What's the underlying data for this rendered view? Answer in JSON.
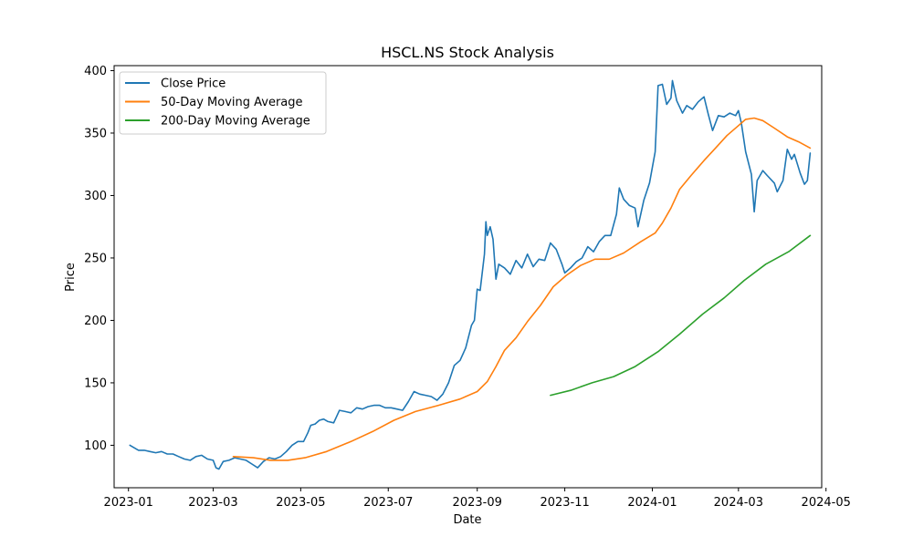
{
  "chart_data": {
    "type": "line",
    "title": "HSCL.NS Stock Analysis",
    "xlabel": "Date",
    "ylabel": "Price",
    "xlim": [
      "2022-12-22",
      "2024-04-28"
    ],
    "ylim": [
      66,
      404
    ],
    "x_ticks": [
      "2023-01-01",
      "2023-03-01",
      "2023-05-01",
      "2023-07-01",
      "2023-09-01",
      "2023-11-01",
      "2024-01-01",
      "2024-03-01",
      "2024-05-01"
    ],
    "x_tick_labels": [
      "2023-01",
      "2023-03",
      "2023-05",
      "2023-07",
      "2023-09",
      "2023-11",
      "2024-01",
      "2024-03",
      "2024-05"
    ],
    "y_ticks": [
      100,
      150,
      200,
      250,
      300,
      350,
      400
    ],
    "y_tick_labels": [
      "100",
      "150",
      "200",
      "250",
      "300",
      "350",
      "400"
    ],
    "grid": false,
    "legend_position": "top-left",
    "series": [
      {
        "name": "Close Price",
        "color": "#1f77b4",
        "points": [
          [
            "2023-01-02",
            100
          ],
          [
            "2023-01-05",
            98
          ],
          [
            "2023-01-08",
            96
          ],
          [
            "2023-01-12",
            96
          ],
          [
            "2023-01-16",
            95
          ],
          [
            "2023-01-20",
            94
          ],
          [
            "2023-01-24",
            95
          ],
          [
            "2023-01-28",
            93
          ],
          [
            "2023-02-01",
            93
          ],
          [
            "2023-02-05",
            91
          ],
          [
            "2023-02-09",
            89
          ],
          [
            "2023-02-13",
            88
          ],
          [
            "2023-02-17",
            91
          ],
          [
            "2023-02-21",
            92
          ],
          [
            "2023-02-25",
            89
          ],
          [
            "2023-03-01",
            88
          ],
          [
            "2023-03-03",
            82
          ],
          [
            "2023-03-05",
            81
          ],
          [
            "2023-03-08",
            87
          ],
          [
            "2023-03-12",
            88
          ],
          [
            "2023-03-16",
            90
          ],
          [
            "2023-03-20",
            89
          ],
          [
            "2023-03-24",
            88
          ],
          [
            "2023-03-28",
            85
          ],
          [
            "2023-04-01",
            82
          ],
          [
            "2023-04-05",
            87
          ],
          [
            "2023-04-09",
            90
          ],
          [
            "2023-04-13",
            89
          ],
          [
            "2023-04-17",
            91
          ],
          [
            "2023-04-21",
            95
          ],
          [
            "2023-04-25",
            100
          ],
          [
            "2023-04-29",
            103
          ],
          [
            "2023-05-03",
            103
          ],
          [
            "2023-05-06",
            110
          ],
          [
            "2023-05-08",
            116
          ],
          [
            "2023-05-11",
            117
          ],
          [
            "2023-05-14",
            120
          ],
          [
            "2023-05-17",
            121
          ],
          [
            "2023-05-20",
            119
          ],
          [
            "2023-05-24",
            118
          ],
          [
            "2023-05-28",
            128
          ],
          [
            "2023-06-01",
            127
          ],
          [
            "2023-06-05",
            126
          ],
          [
            "2023-06-09",
            130
          ],
          [
            "2023-06-13",
            129
          ],
          [
            "2023-06-17",
            131
          ],
          [
            "2023-06-21",
            132
          ],
          [
            "2023-06-25",
            132
          ],
          [
            "2023-06-29",
            130
          ],
          [
            "2023-07-03",
            130
          ],
          [
            "2023-07-07",
            129
          ],
          [
            "2023-07-11",
            128
          ],
          [
            "2023-07-15",
            135
          ],
          [
            "2023-07-19",
            143
          ],
          [
            "2023-07-23",
            141
          ],
          [
            "2023-07-27",
            140
          ],
          [
            "2023-07-31",
            139
          ],
          [
            "2023-08-04",
            136
          ],
          [
            "2023-08-08",
            141
          ],
          [
            "2023-08-12",
            150
          ],
          [
            "2023-08-16",
            164
          ],
          [
            "2023-08-20",
            168
          ],
          [
            "2023-08-24",
            178
          ],
          [
            "2023-08-28",
            196
          ],
          [
            "2023-08-30",
            200
          ],
          [
            "2023-09-01",
            225
          ],
          [
            "2023-09-03",
            224
          ],
          [
            "2023-09-06",
            253
          ],
          [
            "2023-09-07",
            279
          ],
          [
            "2023-09-08",
            268
          ],
          [
            "2023-09-10",
            275
          ],
          [
            "2023-09-12",
            265
          ],
          [
            "2023-09-14",
            233
          ],
          [
            "2023-09-16",
            245
          ],
          [
            "2023-09-20",
            242
          ],
          [
            "2023-09-24",
            237
          ],
          [
            "2023-09-28",
            248
          ],
          [
            "2023-10-02",
            242
          ],
          [
            "2023-10-06",
            253
          ],
          [
            "2023-10-10",
            243
          ],
          [
            "2023-10-14",
            249
          ],
          [
            "2023-10-18",
            248
          ],
          [
            "2023-10-22",
            262
          ],
          [
            "2023-10-26",
            257
          ],
          [
            "2023-10-30",
            245
          ],
          [
            "2023-11-01",
            238
          ],
          [
            "2023-11-05",
            242
          ],
          [
            "2023-11-09",
            247
          ],
          [
            "2023-11-13",
            250
          ],
          [
            "2023-11-17",
            259
          ],
          [
            "2023-11-21",
            255
          ],
          [
            "2023-11-25",
            263
          ],
          [
            "2023-11-29",
            268
          ],
          [
            "2023-12-03",
            268
          ],
          [
            "2023-12-07",
            285
          ],
          [
            "2023-12-09",
            306
          ],
          [
            "2023-12-12",
            297
          ],
          [
            "2023-12-16",
            292
          ],
          [
            "2023-12-20",
            290
          ],
          [
            "2023-12-22",
            275
          ],
          [
            "2023-12-26",
            296
          ],
          [
            "2023-12-30",
            310
          ],
          [
            "2024-01-03",
            335
          ],
          [
            "2024-01-05",
            388
          ],
          [
            "2024-01-08",
            389
          ],
          [
            "2024-01-11",
            373
          ],
          [
            "2024-01-14",
            378
          ],
          [
            "2024-01-15",
            392
          ],
          [
            "2024-01-18",
            376
          ],
          [
            "2024-01-22",
            366
          ],
          [
            "2024-01-25",
            372
          ],
          [
            "2024-01-29",
            369
          ],
          [
            "2024-02-02",
            375
          ],
          [
            "2024-02-06",
            379
          ],
          [
            "2024-02-09",
            365
          ],
          [
            "2024-02-12",
            352
          ],
          [
            "2024-02-16",
            364
          ],
          [
            "2024-02-20",
            363
          ],
          [
            "2024-02-24",
            366
          ],
          [
            "2024-02-28",
            364
          ],
          [
            "2024-03-01",
            368
          ],
          [
            "2024-03-03",
            358
          ],
          [
            "2024-03-06",
            335
          ],
          [
            "2024-03-10",
            317
          ],
          [
            "2024-03-12",
            287
          ],
          [
            "2024-03-14",
            312
          ],
          [
            "2024-03-18",
            320
          ],
          [
            "2024-03-21",
            316
          ],
          [
            "2024-03-26",
            310
          ],
          [
            "2024-03-28",
            303
          ],
          [
            "2024-04-01",
            312
          ],
          [
            "2024-04-04",
            337
          ],
          [
            "2024-04-07",
            329
          ],
          [
            "2024-04-09",
            333
          ],
          [
            "2024-04-13",
            318
          ],
          [
            "2024-04-16",
            309
          ],
          [
            "2024-04-18",
            312
          ],
          [
            "2024-04-20",
            334
          ]
        ]
      },
      {
        "name": "50-Day Moving Average",
        "color": "#ff7f0e",
        "points": [
          [
            "2023-03-15",
            91
          ],
          [
            "2023-03-29",
            90
          ],
          [
            "2023-04-10",
            88
          ],
          [
            "2023-04-22",
            88
          ],
          [
            "2023-05-04",
            90
          ],
          [
            "2023-05-19",
            95
          ],
          [
            "2023-06-05",
            103
          ],
          [
            "2023-06-20",
            111
          ],
          [
            "2023-07-05",
            120
          ],
          [
            "2023-07-20",
            127
          ],
          [
            "2023-08-05",
            132
          ],
          [
            "2023-08-20",
            137
          ],
          [
            "2023-09-01",
            143
          ],
          [
            "2023-09-08",
            151
          ],
          [
            "2023-09-14",
            163
          ],
          [
            "2023-09-20",
            176
          ],
          [
            "2023-09-28",
            186
          ],
          [
            "2023-10-06",
            199
          ],
          [
            "2023-10-15",
            212
          ],
          [
            "2023-10-24",
            227
          ],
          [
            "2023-11-02",
            236
          ],
          [
            "2023-11-12",
            244
          ],
          [
            "2023-11-22",
            249
          ],
          [
            "2023-12-02",
            249
          ],
          [
            "2023-12-12",
            254
          ],
          [
            "2023-12-24",
            263
          ],
          [
            "2024-01-03",
            270
          ],
          [
            "2024-01-08",
            278
          ],
          [
            "2024-01-14",
            290
          ],
          [
            "2024-01-20",
            305
          ],
          [
            "2024-01-28",
            316
          ],
          [
            "2024-02-06",
            328
          ],
          [
            "2024-02-14",
            338
          ],
          [
            "2024-02-22",
            348
          ],
          [
            "2024-03-01",
            356
          ],
          [
            "2024-03-06",
            361
          ],
          [
            "2024-03-12",
            362
          ],
          [
            "2024-03-18",
            360
          ],
          [
            "2024-03-26",
            354
          ],
          [
            "2024-04-04",
            347
          ],
          [
            "2024-04-12",
            343
          ],
          [
            "2024-04-20",
            338
          ]
        ]
      },
      {
        "name": "200-Day Moving Average",
        "color": "#2ca02c",
        "points": [
          [
            "2023-10-22",
            140
          ],
          [
            "2023-11-05",
            144
          ],
          [
            "2023-11-20",
            150
          ],
          [
            "2023-12-05",
            155
          ],
          [
            "2023-12-20",
            163
          ],
          [
            "2024-01-05",
            175
          ],
          [
            "2024-01-20",
            189
          ],
          [
            "2024-02-05",
            205
          ],
          [
            "2024-02-20",
            218
          ],
          [
            "2024-03-05",
            232
          ],
          [
            "2024-03-20",
            245
          ],
          [
            "2024-04-05",
            255
          ],
          [
            "2024-04-20",
            268
          ]
        ]
      }
    ]
  }
}
